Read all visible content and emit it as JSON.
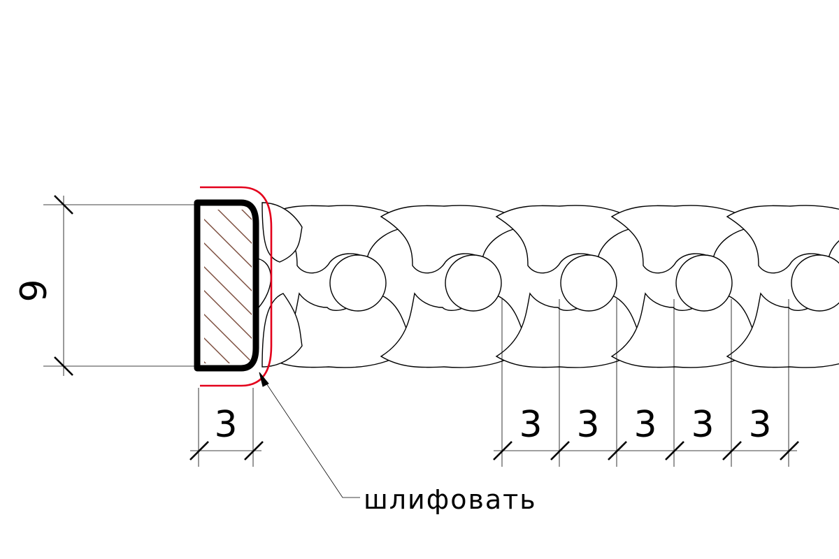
{
  "drawing": {
    "height_dimension": "9",
    "section_width_dimension": "3",
    "pitch_dimensions": [
      "3",
      "3",
      "3",
      "3",
      "3"
    ],
    "callout_label": "шлифовать",
    "colors": {
      "line": "#000000",
      "polish_outline": "#e3001b",
      "hatch": "#7a4a3a",
      "background": "#ffffff"
    }
  }
}
